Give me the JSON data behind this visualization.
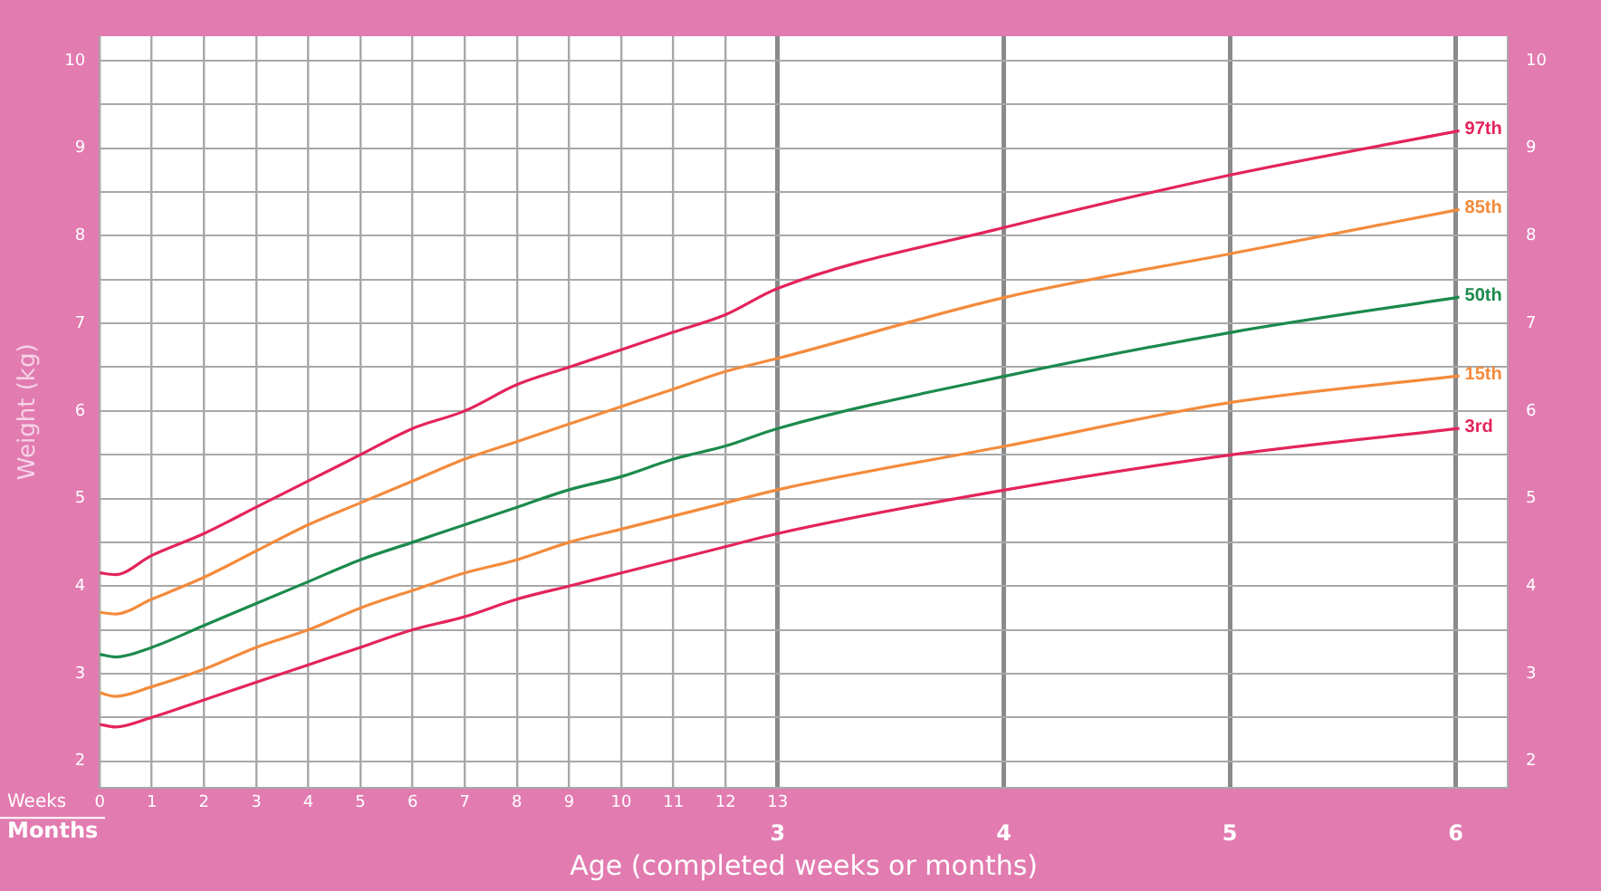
{
  "chart_data": {
    "type": "line",
    "xlabel": "Age (completed weeks or months)",
    "ylabel": "Weight (kg)",
    "annotations": [
      "Weeks",
      "Months"
    ],
    "xlim": [
      0,
      27.0
    ],
    "xticks": [
      0,
      1,
      2,
      3,
      4,
      5,
      6,
      7,
      8,
      9,
      10,
      11,
      12,
      13
    ],
    "x2lim": [
      0,
      6.23
    ],
    "x2ticks": [
      3,
      4,
      5,
      6
    ],
    "ylim": [
      1.7,
      10.28
    ],
    "yticks": [
      2,
      {
        "value": 2.5,
        "label": null
      },
      3,
      {
        "value": 3.5,
        "label": null
      },
      4,
      {
        "value": 4.5,
        "label": null
      },
      5,
      {
        "value": 5.5,
        "label": null
      },
      6,
      {
        "value": 6.5,
        "label": null
      },
      7,
      {
        "value": 7.5,
        "label": null
      },
      8,
      {
        "value": 8.5,
        "label": null
      },
      9,
      {
        "value": 9.5,
        "label": null
      },
      10
    ],
    "y2lim": [
      1.7,
      10.28
    ],
    "y2ticks": [
      2,
      3,
      4,
      5,
      6,
      7,
      8,
      9,
      10
    ],
    "grid": true,
    "legend": false,
    "marker": "none",
    "line_style": "solid",
    "series": [
      {
        "name": "97th",
        "color": "#e3245a",
        "x": [
          0,
          0.3,
          1,
          2,
          3,
          4,
          5,
          6,
          7,
          8,
          9,
          10,
          11,
          12,
          13,
          17.38,
          21.72,
          26.07
        ],
        "values": [
          4.15,
          4.13,
          4.35,
          4.6,
          4.9,
          5.2,
          5.5,
          5.8,
          6.0,
          6.3,
          6.5,
          6.7,
          6.9,
          7.1,
          7.4,
          8.1,
          8.7,
          9.2
        ]
      },
      {
        "name": "85th",
        "color": "#f38b3c",
        "x": [
          0,
          0.3,
          1,
          2,
          3,
          4,
          5,
          6,
          7,
          8,
          9,
          10,
          11,
          12,
          13,
          17.38,
          21.72,
          26.07
        ],
        "values": [
          3.7,
          3.68,
          3.85,
          4.1,
          4.4,
          4.7,
          4.95,
          5.2,
          5.45,
          5.65,
          5.85,
          6.05,
          6.25,
          6.45,
          6.6,
          7.3,
          7.8,
          8.3
        ]
      },
      {
        "name": "50th",
        "color": "#1b8a4c",
        "x": [
          0,
          0.3,
          1,
          2,
          3,
          4,
          5,
          6,
          7,
          8,
          9,
          10,
          11,
          12,
          13,
          17.38,
          21.72,
          26.07
        ],
        "values": [
          3.22,
          3.19,
          3.3,
          3.55,
          3.8,
          4.05,
          4.3,
          4.5,
          4.7,
          4.9,
          5.1,
          5.25,
          5.45,
          5.6,
          5.8,
          6.4,
          6.9,
          7.3
        ]
      },
      {
        "name": "15th",
        "color": "#f38b3c",
        "x": [
          0,
          0.3,
          1,
          2,
          3,
          4,
          5,
          6,
          7,
          8,
          9,
          10,
          11,
          12,
          13,
          17.38,
          21.72,
          26.07
        ],
        "values": [
          2.78,
          2.74,
          2.85,
          3.05,
          3.3,
          3.5,
          3.75,
          3.95,
          4.15,
          4.3,
          4.5,
          4.65,
          4.8,
          4.95,
          5.1,
          5.6,
          6.1,
          6.4
        ]
      },
      {
        "name": "3rd",
        "color": "#e3245a",
        "x": [
          0,
          0.3,
          1,
          2,
          3,
          4,
          5,
          6,
          7,
          8,
          9,
          10,
          11,
          12,
          13,
          17.38,
          21.72,
          26.07
        ],
        "values": [
          2.42,
          2.39,
          2.5,
          2.7,
          2.9,
          3.1,
          3.3,
          3.5,
          3.65,
          3.85,
          4.0,
          4.15,
          4.3,
          4.45,
          4.6,
          5.1,
          5.5,
          5.8
        ]
      }
    ]
  }
}
